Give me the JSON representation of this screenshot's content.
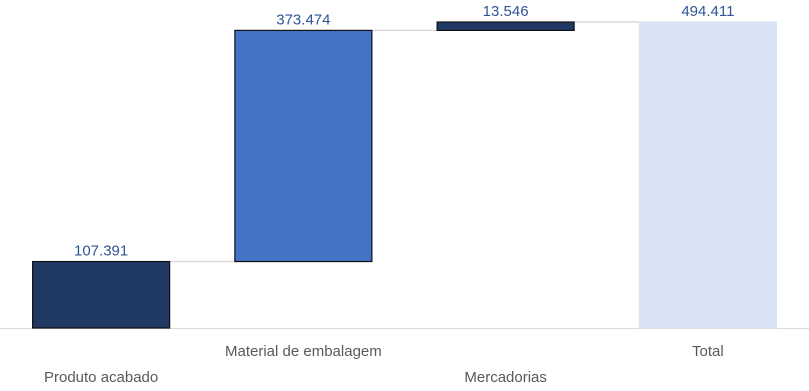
{
  "chart_data": {
    "type": "bar",
    "subtype": "waterfall",
    "categories": [
      "Produto acabado",
      "Material de embalagem",
      "Mercadorias",
      "Total"
    ],
    "values": [
      107391,
      373474,
      13546,
      494411
    ],
    "labels": [
      "107.391",
      "373.474",
      "13.546",
      "494.411"
    ],
    "is_total": [
      false,
      false,
      false,
      true
    ],
    "title": "",
    "xlabel": "",
    "ylabel": "",
    "ylim": [
      0,
      530000
    ],
    "grid": false,
    "legend": "none",
    "colors": {
      "bars": [
        "#1f3864",
        "#4472c4",
        "#1f3864",
        "#dae3f3"
      ],
      "borders": [
        "#111111",
        "#111111",
        "#111111",
        "#dae3f3"
      ],
      "value_label": "#2e5597",
      "category_label": "#595959",
      "connector": "#d9d9d9",
      "baseline": "#d9d9d9"
    }
  }
}
